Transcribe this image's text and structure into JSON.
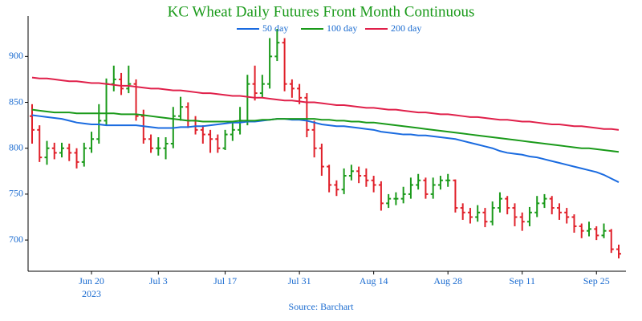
{
  "chart_data": {
    "type": "ohlc",
    "title": "KC Wheat Daily Futures Front Month Continuous",
    "source": "Source: Barchart",
    "x_year_label": "2023",
    "categories": [
      null,
      null,
      null,
      null,
      null,
      null,
      null,
      null,
      "Jun 20",
      null,
      null,
      null,
      null,
      null,
      null,
      null,
      null,
      "Jul 3",
      null,
      null,
      null,
      null,
      null,
      null,
      null,
      null,
      "Jul 17",
      null,
      null,
      null,
      null,
      null,
      null,
      null,
      null,
      null,
      "Jul 31",
      null,
      null,
      null,
      null,
      null,
      null,
      null,
      null,
      null,
      "Aug 14",
      null,
      null,
      null,
      null,
      null,
      null,
      null,
      null,
      null,
      "Aug 28",
      null,
      null,
      null,
      null,
      null,
      null,
      null,
      null,
      null,
      "Sep 11",
      null,
      null,
      null,
      null,
      null,
      null,
      null,
      null,
      null,
      "Sep 25",
      null,
      null,
      null
    ],
    "open": [
      835,
      820,
      790,
      800,
      795,
      800,
      795,
      785,
      800,
      810,
      830,
      870,
      875,
      865,
      870,
      835,
      810,
      800,
      800,
      805,
      835,
      845,
      830,
      820,
      815,
      810,
      800,
      815,
      820,
      830,
      870,
      860,
      870,
      900,
      915,
      870,
      865,
      855,
      820,
      800,
      780,
      760,
      755,
      770,
      775,
      770,
      765,
      760,
      740,
      745,
      745,
      750,
      760,
      765,
      750,
      760,
      765,
      765,
      735,
      730,
      725,
      730,
      720,
      735,
      745,
      735,
      725,
      720,
      730,
      740,
      745,
      735,
      730,
      725,
      715,
      710,
      712,
      705,
      710,
      690
    ],
    "high": [
      848,
      825,
      808,
      806,
      806,
      805,
      800,
      806,
      818,
      848,
      876,
      890,
      882,
      890,
      875,
      842,
      815,
      812,
      812,
      845,
      856,
      850,
      835,
      825,
      820,
      815,
      820,
      828,
      845,
      880,
      890,
      880,
      920,
      930,
      920,
      875,
      870,
      860,
      830,
      805,
      782,
      765,
      778,
      782,
      780,
      778,
      770,
      764,
      750,
      752,
      758,
      768,
      772,
      768,
      768,
      770,
      772,
      766,
      740,
      735,
      738,
      735,
      742,
      752,
      748,
      740,
      730,
      736,
      748,
      750,
      748,
      740,
      735,
      728,
      718,
      720,
      715,
      718,
      712,
      695
    ],
    "low": [
      805,
      785,
      782,
      788,
      790,
      786,
      778,
      780,
      795,
      805,
      825,
      862,
      858,
      860,
      830,
      805,
      795,
      792,
      788,
      800,
      830,
      822,
      815,
      805,
      795,
      795,
      798,
      808,
      815,
      825,
      852,
      855,
      865,
      895,
      862,
      855,
      848,
      812,
      790,
      770,
      752,
      748,
      750,
      765,
      762,
      758,
      752,
      732,
      735,
      738,
      740,
      745,
      755,
      745,
      745,
      755,
      758,
      730,
      722,
      718,
      720,
      714,
      716,
      730,
      728,
      715,
      710,
      715,
      725,
      735,
      728,
      722,
      718,
      708,
      702,
      704,
      700,
      702,
      686,
      680
    ],
    "close": [
      820,
      790,
      800,
      795,
      800,
      795,
      785,
      800,
      810,
      830,
      870,
      875,
      865,
      870,
      835,
      810,
      800,
      800,
      805,
      835,
      845,
      830,
      820,
      815,
      810,
      800,
      815,
      820,
      830,
      870,
      860,
      870,
      900,
      915,
      870,
      865,
      855,
      820,
      800,
      780,
      760,
      755,
      770,
      775,
      770,
      765,
      760,
      740,
      745,
      745,
      750,
      760,
      765,
      750,
      760,
      765,
      765,
      735,
      730,
      725,
      730,
      720,
      735,
      745,
      735,
      725,
      720,
      730,
      740,
      745,
      735,
      730,
      725,
      715,
      710,
      712,
      705,
      710,
      690,
      685
    ],
    "up_color": "#1a9a1a",
    "down_color": "#e0202a",
    "series": [
      {
        "name": "50 day",
        "color": "#1a6be0",
        "values": [
          836,
          835,
          834,
          833,
          832,
          830,
          828,
          827,
          826,
          826,
          825,
          825,
          825,
          825,
          825,
          824,
          823,
          822,
          822,
          822,
          823,
          823,
          824,
          824,
          825,
          826,
          827,
          828,
          828,
          829,
          829,
          830,
          831,
          832,
          832,
          831,
          831,
          830,
          828,
          826,
          825,
          824,
          824,
          823,
          822,
          821,
          820,
          818,
          817,
          816,
          815,
          815,
          814,
          814,
          813,
          812,
          811,
          810,
          808,
          806,
          804,
          802,
          800,
          797,
          795,
          794,
          793,
          791,
          790,
          788,
          786,
          784,
          782,
          780,
          778,
          776,
          774,
          771,
          767,
          763
        ]
      },
      {
        "name": "100 day",
        "color": "#1a9a1a",
        "values": [
          842,
          841,
          840,
          839,
          839,
          839,
          838,
          838,
          838,
          838,
          838,
          838,
          837,
          837,
          837,
          836,
          835,
          834,
          833,
          832,
          831,
          830,
          830,
          829,
          829,
          829,
          829,
          829,
          830,
          830,
          830,
          831,
          831,
          832,
          832,
          832,
          832,
          832,
          832,
          831,
          831,
          830,
          830,
          829,
          829,
          828,
          828,
          827,
          826,
          825,
          824,
          823,
          822,
          821,
          820,
          819,
          818,
          817,
          816,
          815,
          814,
          813,
          812,
          811,
          810,
          809,
          808,
          807,
          806,
          805,
          804,
          803,
          802,
          801,
          800,
          800,
          799,
          798,
          797,
          796
        ]
      },
      {
        "name": "200 day",
        "color": "#e0204a",
        "values": [
          877,
          876,
          876,
          875,
          874,
          873,
          873,
          872,
          871,
          871,
          870,
          869,
          868,
          868,
          867,
          866,
          865,
          865,
          864,
          863,
          863,
          862,
          861,
          860,
          860,
          859,
          858,
          857,
          857,
          856,
          855,
          855,
          854,
          853,
          852,
          852,
          851,
          850,
          850,
          849,
          848,
          847,
          847,
          846,
          845,
          844,
          844,
          843,
          842,
          842,
          841,
          840,
          839,
          839,
          838,
          837,
          837,
          836,
          835,
          834,
          834,
          833,
          832,
          831,
          831,
          830,
          829,
          829,
          828,
          827,
          826,
          826,
          825,
          824,
          824,
          823,
          822,
          821,
          821,
          820
        ]
      }
    ],
    "ylim": [
      666,
      944
    ],
    "yticks": [
      700,
      750,
      800,
      850,
      900
    ],
    "grid": false
  }
}
